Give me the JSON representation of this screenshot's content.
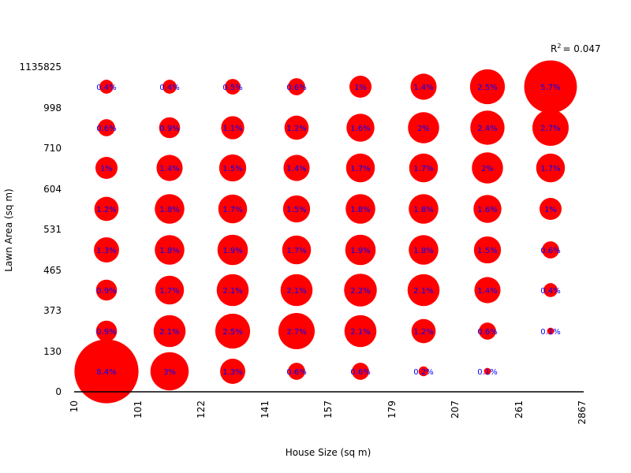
{
  "chart_data": {
    "type": "scatter",
    "subtype": "bubble-grid",
    "xlabel": "House Size (sq m)",
    "ylabel": "Lawn Area (sq m)",
    "x_tick_labels": [
      "10",
      "101",
      "122",
      "141",
      "157",
      "179",
      "207",
      "261",
      "2867"
    ],
    "y_tick_labels": [
      "0",
      "130",
      "373",
      "465",
      "531",
      "604",
      "710",
      "998",
      "1135825"
    ],
    "r_squared_prefix": "R",
    "r_squared_sup": "2",
    "r_squared_value": "= 0.047",
    "bubble_color": "#ff0000",
    "label_color": "#0000ff",
    "rows": [
      [
        "8.4%",
        "3%",
        "1.3%",
        "0.6%",
        "0.6%",
        "0.2%",
        "0.1%",
        ""
      ],
      [
        "0.9%",
        "2.1%",
        "2.5%",
        "2.7%",
        "2.1%",
        "1.2%",
        "0.6%",
        "0.1%"
      ],
      [
        "0.9%",
        "1.7%",
        "2.1%",
        "2.1%",
        "2.2%",
        "2.1%",
        "1.4%",
        "0.4%"
      ],
      [
        "1.3%",
        "1.8%",
        "1.9%",
        "1.7%",
        "1.9%",
        "1.8%",
        "1.5%",
        "0.6%"
      ],
      [
        "1.2%",
        "1.8%",
        "1.7%",
        "1.5%",
        "1.8%",
        "1.8%",
        "1.6%",
        "1%"
      ],
      [
        "1%",
        "1.4%",
        "1.5%",
        "1.4%",
        "1.7%",
        "1.7%",
        "2%",
        "1.7%"
      ],
      [
        "0.6%",
        "0.9%",
        "1.1%",
        "1.2%",
        "1.6%",
        "2%",
        "2.4%",
        "2.7%"
      ],
      [
        "0.4%",
        "0.4%",
        "0.5%",
        "0.6%",
        "1%",
        "1.4%",
        "2.5%",
        "5.7%"
      ]
    ]
  }
}
